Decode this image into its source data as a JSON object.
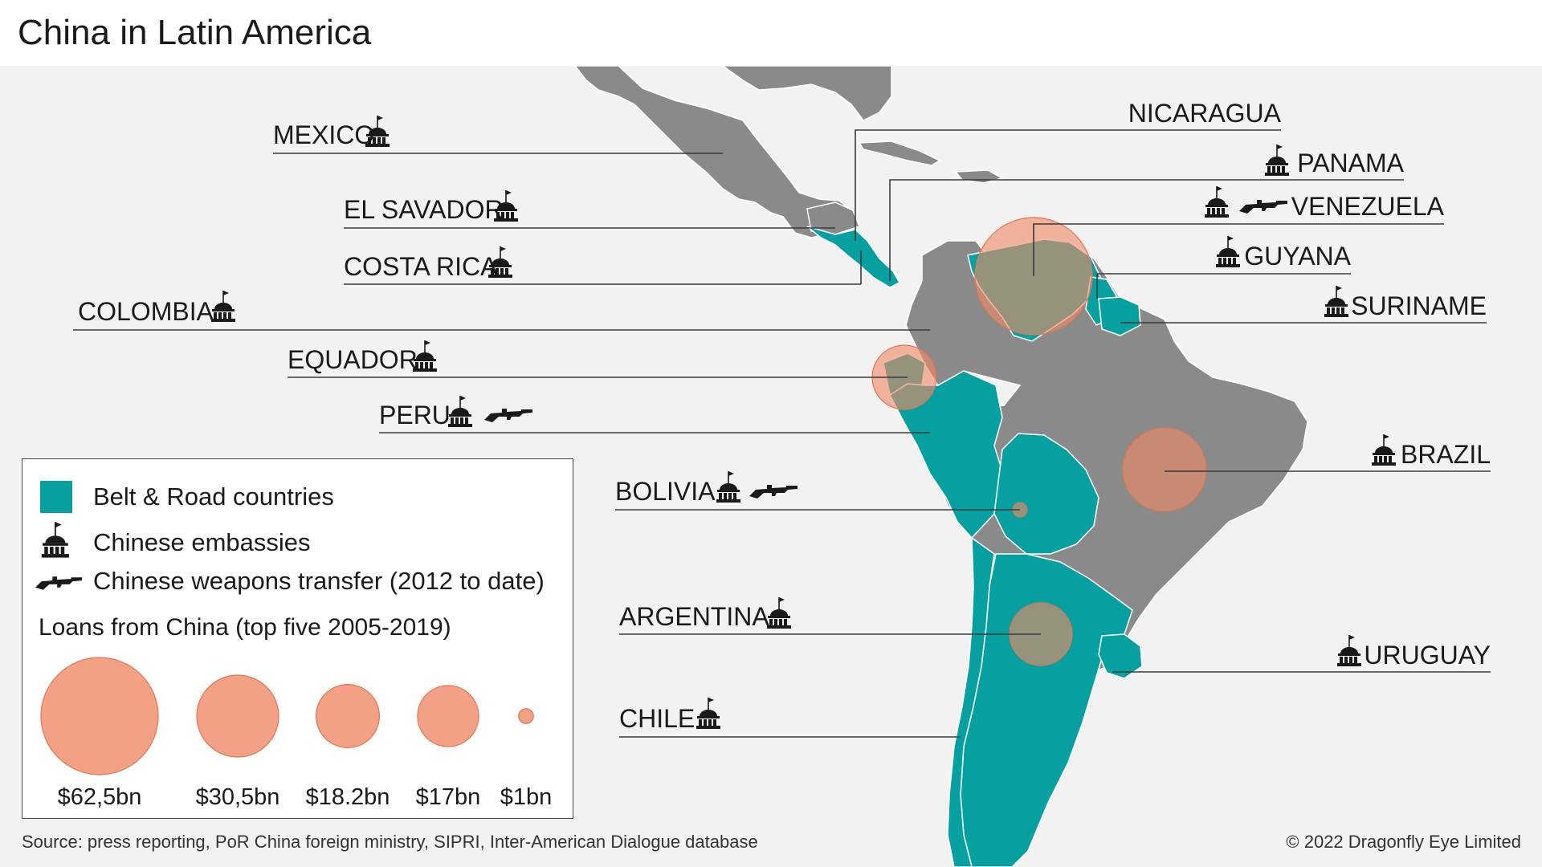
{
  "title": "China in Latin America",
  "colors": {
    "belt_road": "#05a09f",
    "land": "#8a8a8a",
    "loan_bubble": "#f08a68",
    "background": "#f2f2f2"
  },
  "countries": {
    "mexico": "MEXICO",
    "el_salvador": "EL SAVADOR",
    "costa_rica": "COSTA RICA",
    "colombia": "COLOMBIA",
    "ecuador": "EQUADOR",
    "peru": "PERU",
    "bolivia": "BOLIVIA",
    "argentina": "ARGENTINA",
    "chile": "CHILE",
    "nicaragua": "NICARAGUA",
    "panama": "PANAMA",
    "venezuela": "VENEZUELA",
    "guyana": "GUYANA",
    "suriname": "SURINAME",
    "brazil": "BRAZIL",
    "uruguay": "URUGUAY"
  },
  "icons": {
    "embassy": "embassy-icon",
    "weapons": "rifle-icon"
  },
  "legend": {
    "belt_road": "Belt & Road countries",
    "embassies": "Chinese embassies",
    "weapons": "Chinese weapons transfer (2012 to date)",
    "loans_title": "Loans from China (top five 2005-2019)",
    "loans": [
      {
        "label": "$62,5bn",
        "value": 62.5
      },
      {
        "label": "$30,5bn",
        "value": 30.5
      },
      {
        "label": "$18.2bn",
        "value": 18.2
      },
      {
        "label": "$17bn",
        "value": 17
      },
      {
        "label": "$1bn",
        "value": 1
      }
    ]
  },
  "source": "Source: press reporting, PoR China foreign ministry, SIPRI, Inter-American Dialogue database",
  "copyright": "© 2022 Dragonfly Eye Limited"
}
